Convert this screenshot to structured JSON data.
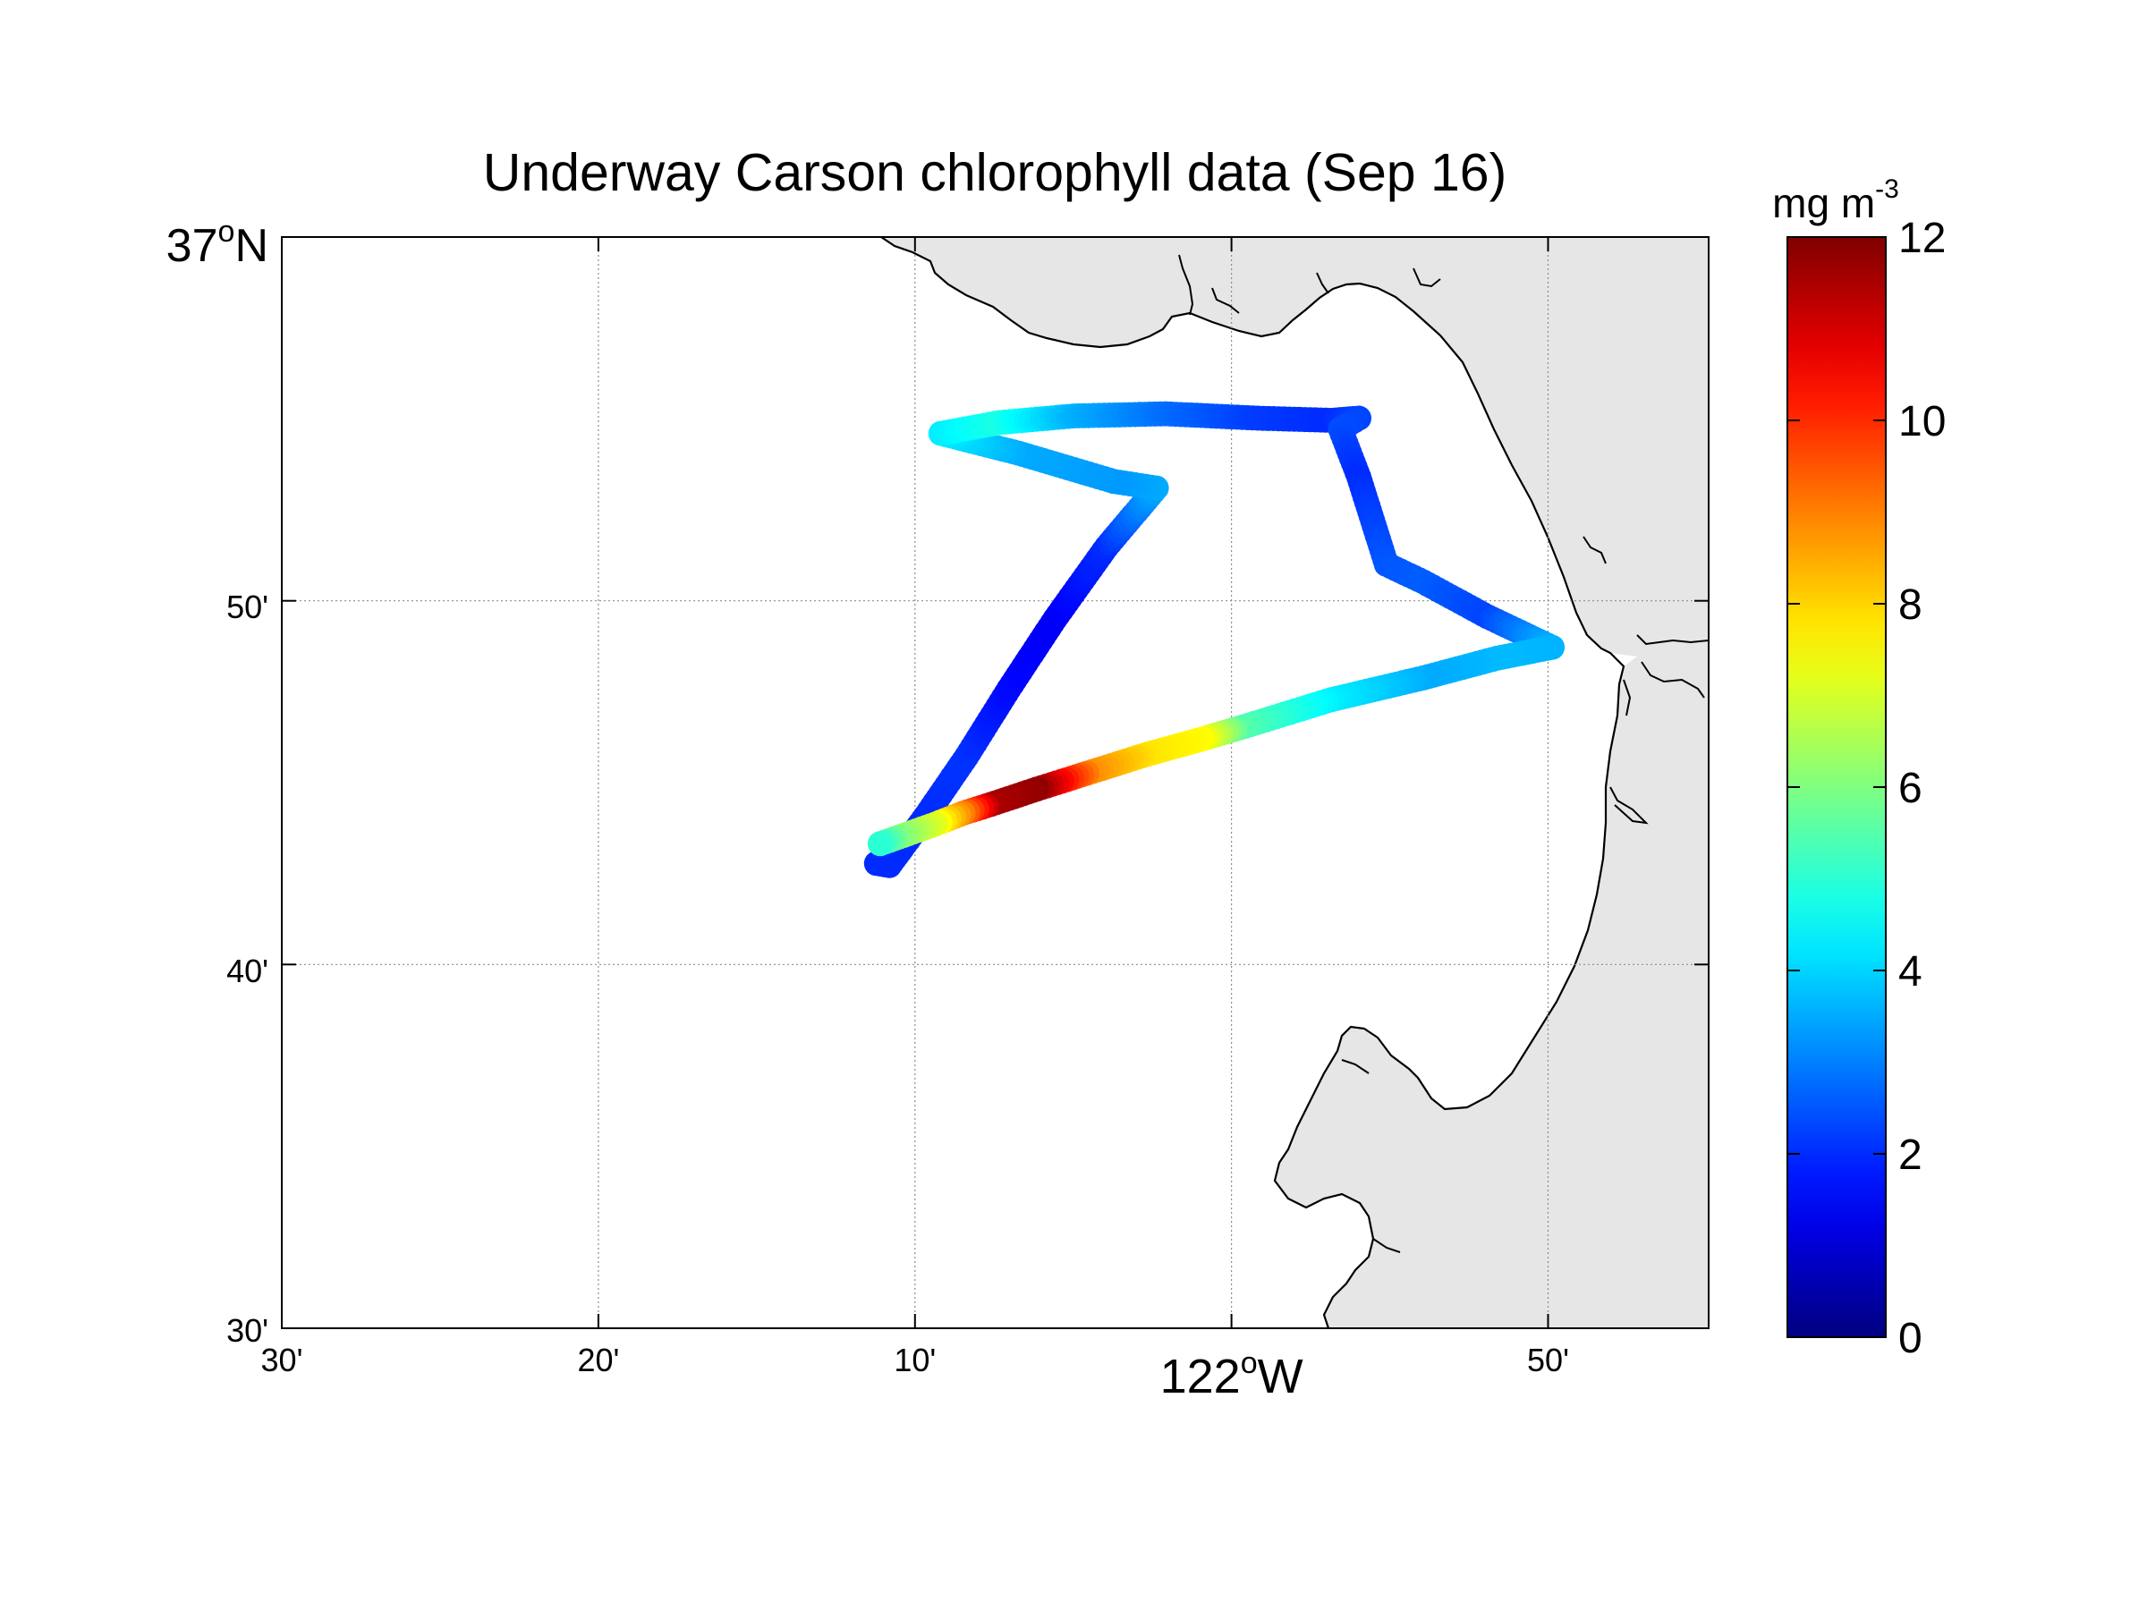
{
  "title": "Underway Carson chlorophyll data (Sep 16)",
  "map": {
    "lon_range": [
      -122.5,
      -121.725
    ],
    "lat_range": [
      36.5,
      37.0
    ],
    "x_ticks": [
      {
        "lon": -122.5,
        "label": "30'"
      },
      {
        "lon": -122.3333,
        "label": "20'"
      },
      {
        "lon": -122.1667,
        "label": "10'"
      },
      {
        "lon": -122.0,
        "label": "122",
        "sup": "o",
        "suffix": "W"
      },
      {
        "lon": -121.8333,
        "label": "50'"
      }
    ],
    "y_ticks": [
      {
        "lat": 36.5,
        "label": "30'"
      },
      {
        "lat": 36.6667,
        "label": "40'"
      },
      {
        "lat": 36.8333,
        "label": "50'"
      },
      {
        "lat": 37.0,
        "label": "37",
        "sup": "o",
        "suffix": "N"
      }
    ],
    "grid": true,
    "land_color": "#e6e6e6",
    "coast_color": "#000000"
  },
  "colorbar": {
    "unit_base": "mg m",
    "unit_exp": "-3",
    "min": 0,
    "max": 12,
    "ticks": [
      "0",
      "2",
      "4",
      "6",
      "8",
      "10",
      "12"
    ],
    "colormap": "jet"
  },
  "chart_data": {
    "type": "scatter",
    "title": "Underway Carson chlorophyll data (Sep 16)",
    "xlabel": "",
    "ylabel": "",
    "x_unit": "degrees longitude",
    "y_unit": "degrees latitude",
    "color_unit": "mg m-3",
    "color_range": [
      0,
      12
    ],
    "track": [
      [
        -122.177,
        36.713,
        2.0
      ],
      [
        -122.17,
        36.712,
        2.0
      ],
      [
        -122.163,
        36.72,
        2.0
      ],
      [
        -122.15,
        36.735,
        2.0
      ],
      [
        -122.128,
        36.762,
        2.1
      ],
      [
        -122.105,
        36.793,
        1.6
      ],
      [
        -122.08,
        36.825,
        1.4
      ],
      [
        -122.052,
        36.858,
        2.0
      ],
      [
        -122.025,
        36.885,
        3.5
      ],
      [
        -122.048,
        36.888,
        3.3
      ],
      [
        -122.1,
        36.901,
        3.5
      ],
      [
        -122.142,
        36.91,
        4.3
      ],
      [
        -122.11,
        36.915,
        4.8
      ],
      [
        -122.07,
        36.918,
        3.6
      ],
      [
        -122.02,
        36.919,
        2.8
      ],
      [
        -121.97,
        36.917,
        2.2
      ],
      [
        -121.93,
        36.916,
        2.0
      ],
      [
        -121.915,
        36.917,
        2.3
      ],
      [
        -121.925,
        36.912,
        2.4
      ],
      [
        -121.915,
        36.89,
        2.0
      ],
      [
        -121.9,
        36.85,
        2.5
      ],
      [
        -121.88,
        36.842,
        2.6
      ],
      [
        -121.845,
        36.826,
        2.3
      ],
      [
        -121.81,
        36.812,
        3.6
      ],
      [
        -121.84,
        36.807,
        3.7
      ],
      [
        -121.88,
        36.798,
        3.5
      ],
      [
        -121.93,
        36.788,
        4.3
      ],
      [
        -121.98,
        36.775,
        5.5
      ],
      [
        -122.0,
        36.77,
        7.5
      ],
      [
        -122.03,
        36.763,
        7.8
      ],
      [
        -122.06,
        36.755,
        8.8
      ],
      [
        -122.09,
        36.747,
        11.8
      ],
      [
        -122.115,
        36.74,
        11.5
      ],
      [
        -122.13,
        36.736,
        9.0
      ],
      [
        -122.145,
        36.731,
        7.2
      ],
      [
        -122.165,
        36.725,
        6.0
      ],
      [
        -122.175,
        36.722,
        5.0
      ]
    ]
  }
}
